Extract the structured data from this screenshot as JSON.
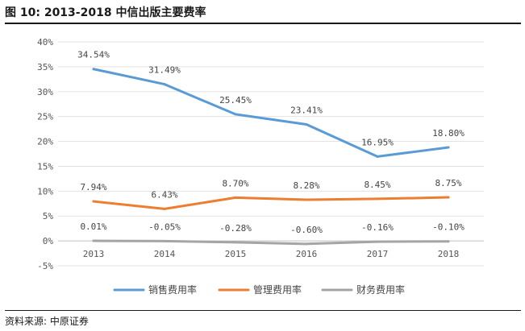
{
  "header": {
    "title": "图 10:  2013-2018 中信出版主要费率"
  },
  "footer": {
    "source": "资料来源: 中原证券"
  },
  "chart_data": {
    "type": "line",
    "categories": [
      "2013",
      "2014",
      "2015",
      "2016",
      "2017",
      "2018"
    ],
    "yticks": [
      "40%",
      "35%",
      "30%",
      "25%",
      "20%",
      "15%",
      "10%",
      "5%",
      "0%",
      "-5%"
    ],
    "ylim": [
      -5,
      40
    ],
    "series": [
      {
        "name": "销售费用率",
        "color": "#5B9BD5",
        "values": [
          34.54,
          31.49,
          25.45,
          23.41,
          16.95,
          18.8
        ],
        "labels": [
          "34.54%",
          "31.49%",
          "25.45%",
          "23.41%",
          "16.95%",
          "18.80%"
        ]
      },
      {
        "name": "管理费用率",
        "color": "#ED7D31",
        "values": [
          7.94,
          6.43,
          8.7,
          8.28,
          8.45,
          8.75
        ],
        "labels": [
          "7.94%",
          "6.43%",
          "8.70%",
          "8.28%",
          "8.45%",
          "8.75%"
        ]
      },
      {
        "name": "财务费用率",
        "color": "#A5A5A5",
        "values": [
          0.01,
          -0.05,
          -0.28,
          -0.6,
          -0.16,
          -0.1
        ],
        "labels": [
          "0.01%",
          "-0.05%",
          "-0.28%",
          "-0.60%",
          "-0.16%",
          "-0.10%"
        ]
      }
    ],
    "grid": true,
    "legend": "bottom"
  }
}
